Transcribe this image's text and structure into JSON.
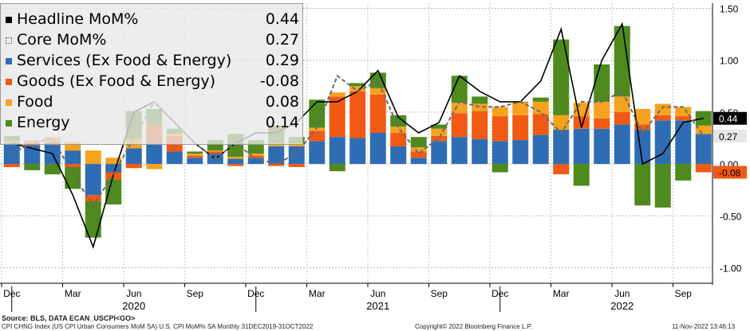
{
  "chart_data": {
    "type": "bar",
    "categories": [
      "Dec 2019",
      "Jan 2020",
      "Feb 2020",
      "Mar 2020",
      "Apr 2020",
      "May 2020",
      "Jun 2020",
      "Jul 2020",
      "Aug 2020",
      "Sep 2020",
      "Oct 2020",
      "Nov 2020",
      "Dec 2020",
      "Jan 2021",
      "Feb 2021",
      "Mar 2021",
      "Apr 2021",
      "May 2021",
      "Jun 2021",
      "Jul 2021",
      "Aug 2021",
      "Sep 2021",
      "Oct 2021",
      "Nov 2021",
      "Dec 2021",
      "Jan 2022",
      "Feb 2022",
      "Mar 2022",
      "Apr 2022",
      "May 2022",
      "Jun 2022",
      "Jul 2022",
      "Aug 2022",
      "Sep 2022",
      "Oct 2022"
    ],
    "stacked": true,
    "series": [
      {
        "name": "Services (Ex Food & Energy)",
        "color": "#2e6db4",
        "kind": "bar",
        "values": [
          0.2,
          0.18,
          0.2,
          0.13,
          -0.3,
          -0.08,
          0.15,
          0.2,
          0.12,
          0.06,
          0.1,
          0.05,
          0.06,
          0.17,
          0.17,
          0.22,
          0.26,
          0.25,
          0.3,
          0.17,
          0.06,
          0.22,
          0.26,
          0.24,
          0.22,
          0.23,
          0.28,
          0.33,
          0.34,
          0.34,
          0.38,
          0.33,
          0.42,
          0.42,
          0.29
        ]
      },
      {
        "name": "Goods (Ex Food & Energy)",
        "color": "#f05a14",
        "kind": "bar",
        "values": [
          -0.03,
          0.02,
          0.01,
          -0.03,
          -0.06,
          -0.07,
          -0.04,
          0.18,
          0.15,
          0.02,
          0.02,
          -0.02,
          0.02,
          -0.02,
          -0.03,
          0.1,
          0.39,
          0.45,
          0.37,
          0.13,
          0.06,
          0.05,
          0.23,
          0.27,
          0.24,
          0.24,
          0.2,
          -0.1,
          0.12,
          0.1,
          0.12,
          0.05,
          0.05,
          0.04,
          -0.08
        ]
      },
      {
        "name": "Food",
        "color": "#f5a21f",
        "kind": "bar",
        "values": [
          0.02,
          0.03,
          0.05,
          0.08,
          0.13,
          0.06,
          0.09,
          -0.05,
          0.02,
          0.02,
          0.01,
          0.02,
          0.02,
          0.03,
          0.03,
          0.03,
          0.04,
          0.05,
          0.06,
          0.06,
          0.04,
          0.07,
          0.1,
          0.07,
          0.09,
          0.13,
          0.12,
          0.14,
          0.13,
          0.16,
          0.15,
          0.15,
          0.11,
          0.09,
          0.08
        ]
      },
      {
        "name": "Energy",
        "color": "#4e8a1e",
        "kind": "bar",
        "values": [
          0.05,
          -0.06,
          -0.1,
          -0.21,
          -0.35,
          -0.24,
          0.27,
          0.15,
          0.05,
          0.02,
          0.1,
          0.22,
          0.13,
          0.17,
          0.06,
          0.27,
          -0.07,
          0.03,
          0.15,
          0.11,
          0.1,
          0.04,
          0.26,
          0.07,
          -0.08,
          0.0,
          0.04,
          0.73,
          -0.21,
          0.36,
          0.68,
          -0.4,
          -0.42,
          -0.16,
          0.14
        ]
      },
      {
        "name": "Headline MoM%",
        "color": "#000000",
        "kind": "line",
        "values": [
          0.2,
          0.15,
          0.1,
          -0.3,
          -0.8,
          -0.1,
          0.5,
          0.6,
          0.4,
          0.2,
          0.05,
          0.2,
          0.3,
          0.3,
          0.4,
          0.6,
          0.6,
          0.7,
          0.9,
          0.45,
          0.3,
          0.4,
          0.85,
          0.7,
          0.6,
          0.6,
          0.8,
          1.3,
          0.35,
          1.0,
          1.35,
          0.0,
          0.1,
          0.4,
          0.44
        ]
      },
      {
        "name": "Core MoM%",
        "color": "#6a6a6a",
        "kind": "dashed-line",
        "values": [
          0.1,
          0.2,
          0.25,
          -0.1,
          -0.4,
          -0.1,
          0.25,
          0.6,
          0.4,
          0.2,
          0.05,
          0.2,
          0.05,
          0.0,
          0.1,
          0.35,
          0.85,
          0.7,
          0.8,
          0.35,
          0.1,
          0.25,
          0.6,
          0.55,
          0.55,
          0.6,
          0.5,
          0.3,
          0.6,
          0.6,
          0.7,
          0.3,
          0.55,
          0.55,
          0.27
        ]
      }
    ],
    "last_values": {
      "Headline MoM%": "0.44",
      "Core MoM%": "0.27",
      "Services (Ex Food & Energy)": "0.29",
      "Goods (Ex Food & Energy)": "-0.08",
      "Food": "0.08",
      "Energy": "0.14"
    },
    "ylim": [
      -1.15,
      1.55
    ],
    "yticks": [
      -1.0,
      -0.5,
      0.0,
      0.5,
      1.0,
      1.5
    ],
    "ytick_labels": [
      "-1.00",
      "-0.50",
      "0.00",
      "0.50",
      "1.00",
      "1.50"
    ],
    "month_ticks": [
      {
        "index": 0,
        "label": "Dec"
      },
      {
        "index": 3,
        "label": "Mar"
      },
      {
        "index": 6,
        "label": "Jun"
      },
      {
        "index": 9,
        "label": "Sep"
      },
      {
        "index": 12,
        "label": "Dec"
      },
      {
        "index": 15,
        "label": "Mar"
      },
      {
        "index": 18,
        "label": "Jun"
      },
      {
        "index": 21,
        "label": "Sep"
      },
      {
        "index": 24,
        "label": "Dec"
      },
      {
        "index": 27,
        "label": "Mar"
      },
      {
        "index": 30,
        "label": "Jun"
      },
      {
        "index": 33,
        "label": "Sep"
      }
    ],
    "year_labels": [
      {
        "index": 6,
        "label": "2020"
      },
      {
        "index": 18,
        "label": "2021"
      },
      {
        "index": 30,
        "label": "2022"
      }
    ],
    "year_boundaries": [
      0.5,
      12.5,
      24.5
    ],
    "right_labels": [
      {
        "text": "0.44",
        "value": 0.44,
        "bg": "#000000",
        "fg": "#ffffff"
      },
      {
        "text": "0.27",
        "value": 0.27,
        "bg": "#e6e6e6",
        "fg": "#000000"
      },
      {
        "text": "-0.08",
        "value": -0.08,
        "bg": "#f05a14",
        "fg": "#000000"
      }
    ],
    "right_label_hidden": [
      "0.14",
      "0.29",
      "0.08"
    ],
    "grid": true,
    "legend": "top-left"
  },
  "legend_order": [
    "Headline MoM%",
    "Core MoM%",
    "Services (Ex Food & Energy)",
    "Goods (Ex Food & Energy)",
    "Food",
    "Energy"
  ],
  "legend_markers": [
    "■",
    "◌",
    "■",
    "■",
    "■",
    "■"
  ],
  "footer": {
    "source": "Source: BLS, DATA ECAN_USCPI<GO>",
    "ticker": "CPI CHNG Index (US CPI Urban Consumers MoM SA) U.S. CPI MoM% SA  Monthly 31DEC2019-31OCT2022",
    "copyright": "Copyright© 2022 Bloomberg Finance L.P.",
    "timestamp": "11-Nov-2022 13:46:13"
  }
}
